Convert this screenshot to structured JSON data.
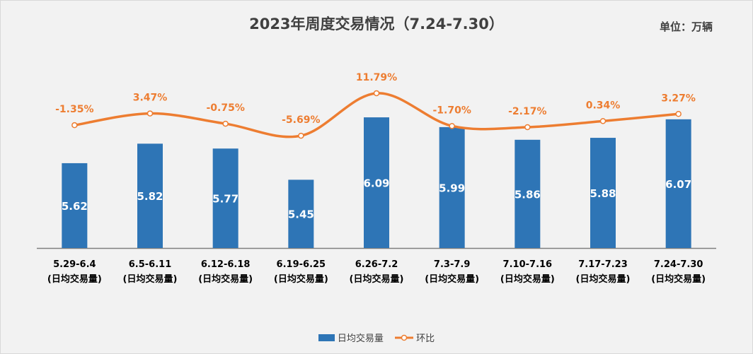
{
  "chart_data": {
    "type": "bar+line",
    "title": "2023年周度交易情况（7.24-7.30）",
    "unit_label": "单位：万辆",
    "categories": [
      "5.29-6.4",
      "6.5-6.11",
      "6.12-6.18",
      "6.19-6.25",
      "6.26-7.2",
      "7.3-7.9",
      "7.10-7.16",
      "7.17-7.23",
      "7.24-7.30"
    ],
    "category_sublabel": "(日均交易量)",
    "series": [
      {
        "name": "日均交易量",
        "type": "bar",
        "color": "#2e75b6",
        "values": [
          5.62,
          5.82,
          5.77,
          5.45,
          6.09,
          5.99,
          5.86,
          5.88,
          6.07
        ],
        "labels": [
          "5.62",
          "5.82",
          "5.77",
          "5.45",
          "6.09",
          "5.99",
          "5.86",
          "5.88",
          "6.07"
        ]
      },
      {
        "name": "环比",
        "type": "line",
        "color": "#ed7d31",
        "values": [
          -1.35,
          3.47,
          -0.75,
          -5.69,
          11.79,
          -1.7,
          -2.17,
          0.34,
          3.27
        ],
        "labels": [
          "-1.35%",
          "3.47%",
          "-0.75%",
          "-5.69%",
          "11.79%",
          "-1.70%",
          "-2.17%",
          "0.34%",
          "3.27%"
        ]
      }
    ],
    "legend_position": "bottom"
  }
}
